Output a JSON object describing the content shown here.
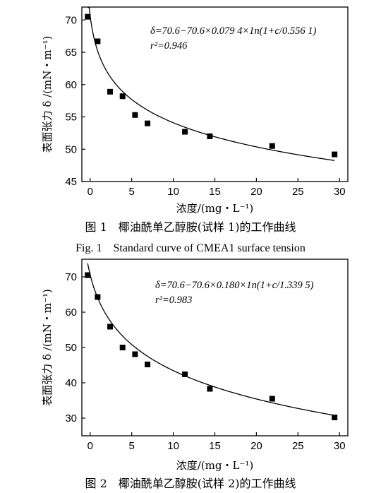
{
  "chart_data": [
    {
      "type": "scatter",
      "fit": "line",
      "xlabel": "浓度/(mg・L⁻¹)",
      "ylabel": "表面张力 δ /(mN・m⁻¹)",
      "xlim": [
        -1,
        31
      ],
      "ylim": [
        45,
        72
      ],
      "xticks": [
        0,
        5,
        10,
        15,
        20,
        25,
        30
      ],
      "yticks": [
        45,
        50,
        55,
        60,
        65,
        70
      ],
      "x": [
        -0.3,
        0.9,
        2.4,
        3.9,
        5.4,
        6.9,
        11.4,
        14.4,
        21.9,
        29.4
      ],
      "y": [
        70.5,
        66.7,
        58.9,
        58.2,
        55.3,
        54.0,
        52.7,
        52.0,
        50.5,
        49.2
      ],
      "equation": "δ=70.6−70.6×0.079 4×1n(1+c/0.556 1)",
      "r2": "r²=0.946",
      "fit_params": {
        "a": 70.6,
        "k": 0.0794,
        "c0": 0.5561
      },
      "caption_cn": "图 1　椰油酰单乙醇胺(试样 1)的工作曲线",
      "caption_en": "Fig. 1　Standard curve of CMEA1 surface tension"
    },
    {
      "type": "scatter",
      "fit": "line",
      "xlabel": "浓度/(mg・L⁻¹)",
      "ylabel": "表面张力 δ /(mN・m⁻¹)",
      "xlim": [
        -1,
        31
      ],
      "ylim": [
        25,
        75
      ],
      "xticks": [
        0,
        5,
        10,
        15,
        20,
        25,
        30
      ],
      "yticks": [
        30,
        40,
        50,
        60,
        70
      ],
      "x": [
        -0.3,
        0.9,
        2.4,
        3.9,
        5.4,
        6.9,
        11.4,
        14.4,
        21.9,
        29.4
      ],
      "y": [
        70.5,
        64.3,
        55.9,
        50.0,
        48.1,
        45.2,
        42.4,
        38.3,
        35.5,
        30.2
      ],
      "equation": "δ=70.6−70.6×0.180×1n(1+c/1.339 5)",
      "r2": "r²=0.983",
      "fit_params": {
        "a": 70.6,
        "k": 0.18,
        "c0": 1.3395
      },
      "caption_cn": "图 2　椰油酰单乙醇胺(试样 2)的工作曲线"
    }
  ]
}
